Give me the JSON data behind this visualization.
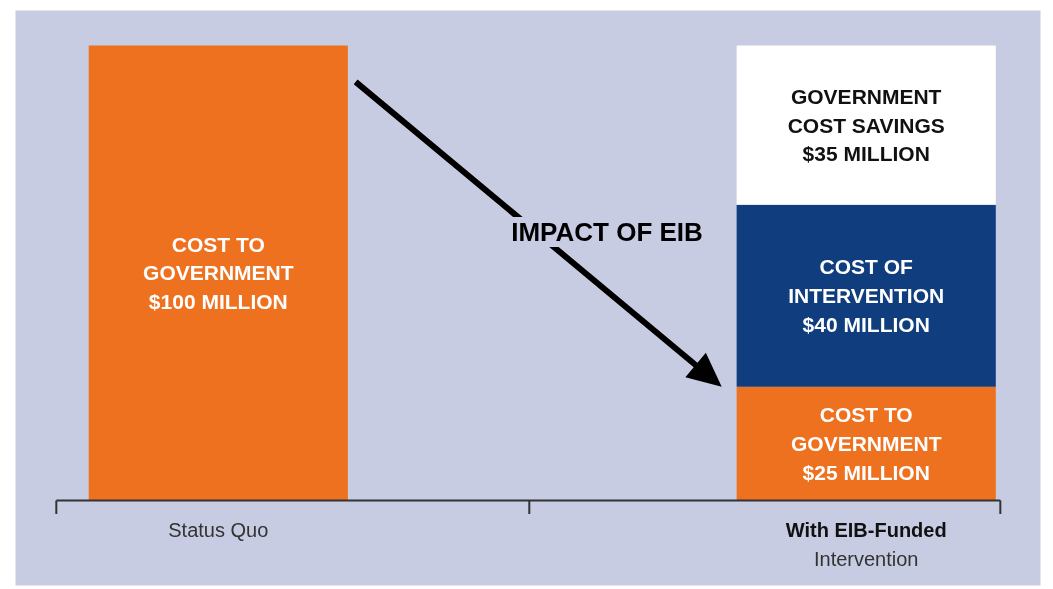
{
  "chart_data": {
    "type": "bar",
    "stacked": true,
    "categories": [
      "Status Quo",
      "With EIB-Funded\nIntervention"
    ],
    "series": [
      {
        "color": "#ee711f",
        "values": [
          100,
          25
        ],
        "value_labels": [
          "COST TO\nGOVERNMENT\n$100 MILLION",
          "COST TO\nGOVERNMENT\n$25 MILLION"
        ]
      },
      {
        "color": "#0f3d7d",
        "values": [
          null,
          40
        ],
        "value_labels": [
          null,
          "COST OF\nINTERVENTION\n$40 MILLION"
        ]
      },
      {
        "color": "#ffffff",
        "values": [
          null,
          35
        ],
        "value_labels": [
          null,
          "GOVERNMENT\nCOST SAVINGS\n$35 MILLION"
        ]
      }
    ],
    "annotations": [
      "IMPACT OF EIB"
    ],
    "grid": false
  }
}
